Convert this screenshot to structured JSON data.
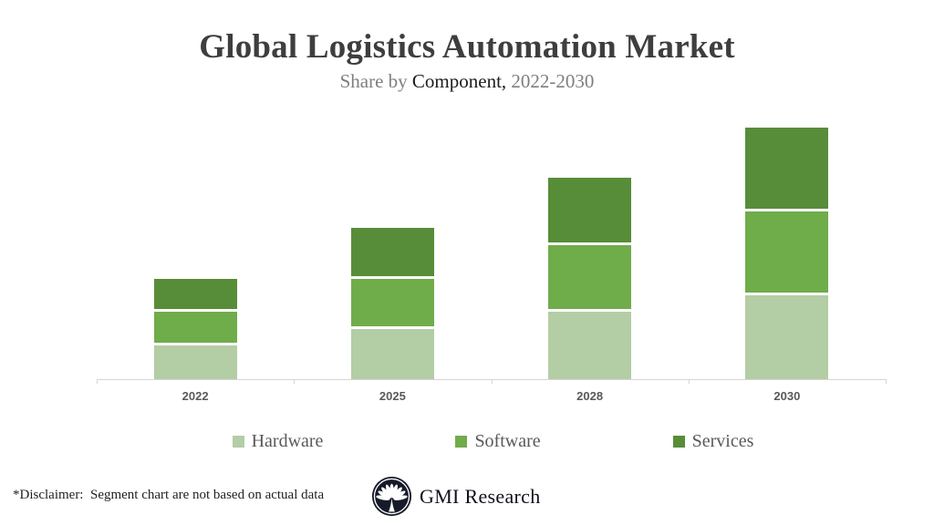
{
  "slide": {
    "title": "Global Logistics Automation Market",
    "subtitle": {
      "prefix": "Share by ",
      "highlight": "Component,",
      "suffix": " 2022-2030"
    }
  },
  "chart_data": {
    "type": "bar",
    "stacked": true,
    "title": "Global Logistics Automation Market",
    "subtitle": "Share by Component, 2022-2030",
    "categories": [
      "2022",
      "2025",
      "2028",
      "2030"
    ],
    "series": [
      {
        "name": "Hardware",
        "color": "#b3cda5",
        "values": [
          13.33,
          20,
          26.67,
          33.33
        ]
      },
      {
        "name": "Software",
        "color": "#6fac4a",
        "values": [
          13.33,
          20,
          26.67,
          33.33
        ]
      },
      {
        "name": "Services",
        "color": "#578d38",
        "values": [
          13.34,
          20,
          26.66,
          33.34
        ]
      }
    ],
    "stacked_totals": [
      40,
      60,
      80,
      100
    ],
    "ylim": [
      0,
      100
    ],
    "grid": false,
    "y_axis_shown": false,
    "legend_position": "bottom",
    "axis_color": "#d5d5d5",
    "tick_label_color": "#595959"
  },
  "footer": {
    "disclaimer": "*Disclaimer:  Segment chart are not based on actual data",
    "brand": "GMI Research"
  },
  "logo": {
    "circle_color": "#161b29",
    "emblem_color": "#ffffff"
  }
}
